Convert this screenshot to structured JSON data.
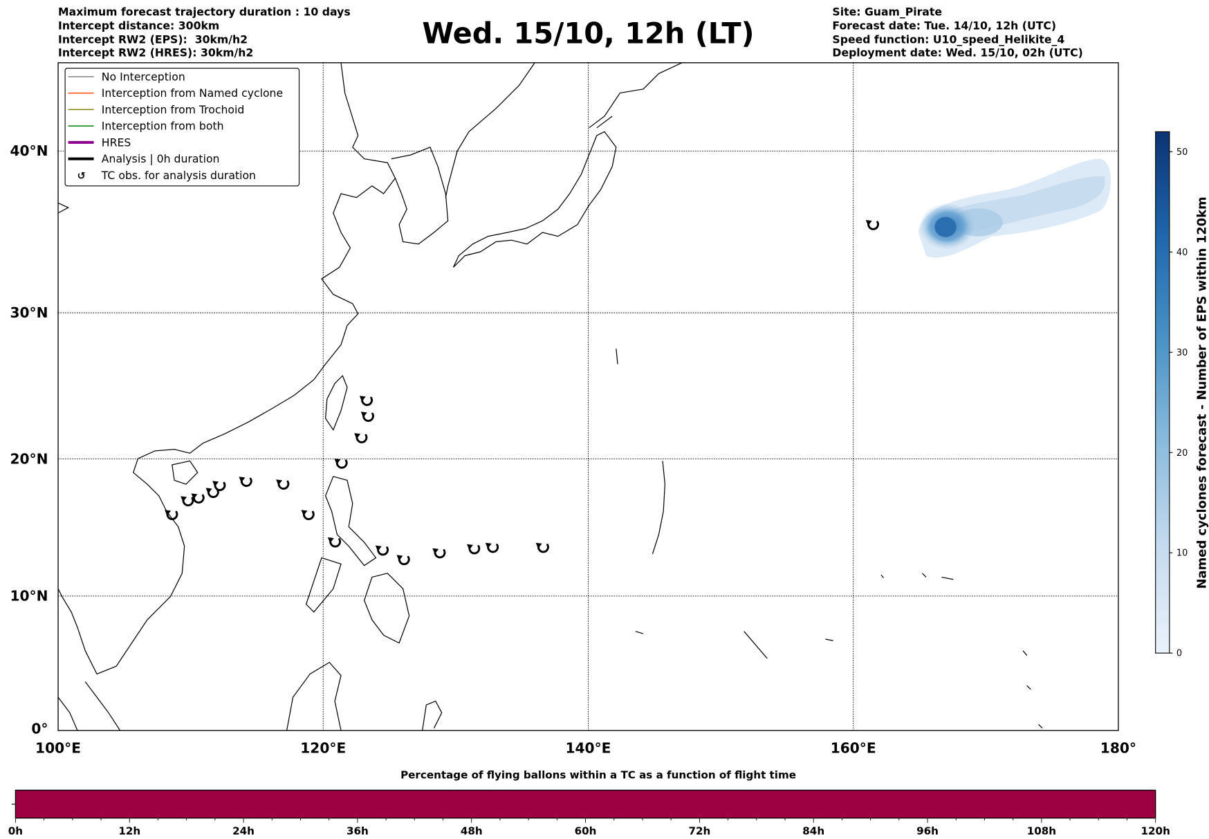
{
  "header": {
    "left": [
      "Maximum forecast trajectory duration : 10 days",
      "Intercept distance: 300km",
      "Intercept RW2 (EPS):  30km/h2",
      "Intercept RW2 (HRES): 30km/h2"
    ],
    "title": "Wed. 15/10, 12h (LT)",
    "right": [
      "Site: Guam_Pirate",
      "Forecast date: Tue. 14/10, 12h (UTC)",
      "Speed function: U10_speed_Helikite_4",
      "Deployment date: Wed. 15/10, 02h (UTC)"
    ]
  },
  "chart_data": [
    {
      "type": "map",
      "projection": "mercator",
      "xlim": [
        100,
        180
      ],
      "ylim": [
        0,
        45.5
      ],
      "x_ticks": [
        {
          "value": 100,
          "label": "100°E"
        },
        {
          "value": 120,
          "label": "120°E"
        },
        {
          "value": 140,
          "label": "140°E"
        },
        {
          "value": 160,
          "label": "160°E"
        },
        {
          "value": 180,
          "label": "180°"
        }
      ],
      "y_ticks": [
        {
          "value": 0,
          "label": "0°"
        },
        {
          "value": 10,
          "label": "10°N"
        },
        {
          "value": 20,
          "label": "20°N"
        },
        {
          "value": 30,
          "label": "30°N"
        },
        {
          "value": 40,
          "label": "40°N"
        }
      ],
      "grid": true,
      "legend_placement": "top-left",
      "legend": [
        {
          "label": "No Interception",
          "color": "#808080",
          "style": "thin"
        },
        {
          "label": "Interception from Named cyclone",
          "color": "#ff4500",
          "style": "thin"
        },
        {
          "label": "Interception from Trochoid",
          "color": "#808000",
          "style": "thin"
        },
        {
          "label": "Interception from both",
          "color": "#008000",
          "style": "thin"
        },
        {
          "label": "HRES",
          "color": "#8b008b",
          "style": "thick"
        },
        {
          "label": "Analysis | 0h duration",
          "color": "#000000",
          "style": "thick"
        },
        {
          "label": "TC obs. for analysis duration",
          "color": "#000000",
          "style": "symbol"
        }
      ],
      "tc_symbol": "↺",
      "tc_obs": [
        [
          161.5,
          35.6
        ],
        [
          123.3,
          24.1
        ],
        [
          123.4,
          23.0
        ],
        [
          122.9,
          21.5
        ],
        [
          121.4,
          19.7
        ],
        [
          108.6,
          16.0
        ],
        [
          109.8,
          17.0
        ],
        [
          110.6,
          17.2
        ],
        [
          111.7,
          17.6
        ],
        [
          112.2,
          18.1
        ],
        [
          114.2,
          18.4
        ],
        [
          117.0,
          18.2
        ],
        [
          118.9,
          16.0
        ],
        [
          120.9,
          14.0
        ],
        [
          124.5,
          13.4
        ],
        [
          126.1,
          12.7
        ],
        [
          128.8,
          13.2
        ],
        [
          131.4,
          13.5
        ],
        [
          132.8,
          13.6
        ],
        [
          136.6,
          13.6
        ]
      ],
      "eps_density_peak": {
        "lon": 167,
        "lat": 35.4,
        "value": 45
      }
    },
    {
      "type": "colorbar",
      "label": "Named cyclones forecast - Number of EPS within 120km",
      "range": [
        0,
        52
      ],
      "ticks": [
        "0",
        "10",
        "20",
        "30",
        "40",
        "50"
      ],
      "colormap": "Blues"
    },
    {
      "type": "bar",
      "title": "Percentage of flying ballons within a TC as a function of flight time",
      "xlim": [
        0,
        120
      ],
      "ticks": [
        "0h",
        "12h",
        "24h",
        "36h",
        "48h",
        "60h",
        "72h",
        "84h",
        "96h",
        "108h",
        "120h"
      ],
      "segments": [
        {
          "from": 0,
          "to": 120,
          "color": "#9e0142"
        }
      ]
    }
  ]
}
